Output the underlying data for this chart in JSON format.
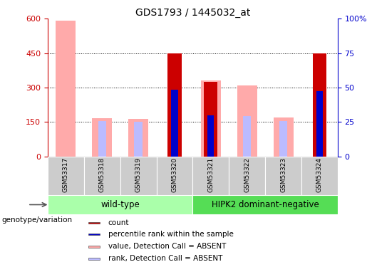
{
  "title": "GDS1793 / 1445032_at",
  "samples": [
    "GSM53317",
    "GSM53318",
    "GSM53319",
    "GSM53320",
    "GSM53321",
    "GSM53322",
    "GSM53323",
    "GSM53324"
  ],
  "groups": {
    "wild-type": [
      0,
      1,
      2,
      3
    ],
    "HIPK2 dominant-negative": [
      4,
      5,
      6,
      7
    ]
  },
  "ylim_left": [
    0,
    600
  ],
  "ylim_right": [
    0,
    100
  ],
  "yticks_left": [
    0,
    150,
    300,
    450,
    600
  ],
  "ytick_labels_left": [
    "0",
    "150",
    "300",
    "450",
    "600"
  ],
  "yticks_right": [
    0,
    25,
    50,
    75,
    100
  ],
  "ytick_labels_right": [
    "0",
    "25",
    "50",
    "75",
    "100%"
  ],
  "value_absent": [
    590,
    165,
    163,
    null,
    330,
    310,
    170,
    null
  ],
  "rank_absent_val": [
    null,
    155,
    152,
    null,
    null,
    175,
    155,
    null
  ],
  "count_present": [
    null,
    null,
    null,
    450,
    325,
    null,
    null,
    450
  ],
  "rank_present_val": [
    null,
    null,
    null,
    290,
    178,
    null,
    null,
    285
  ],
  "color_count": "#cc0000",
  "color_rank": "#0000cc",
  "color_value_absent": "#ffaaaa",
  "color_rank_absent": "#bbbbff",
  "left_tick_color": "#cc0000",
  "right_tick_color": "#0000cc",
  "group_color_wt": "#aaffaa",
  "group_color_hipk2": "#55dd55",
  "sample_bg_color": "#cccccc",
  "legend_items": [
    {
      "label": "count",
      "color": "#cc0000"
    },
    {
      "label": "percentile rank within the sample",
      "color": "#0000cc"
    },
    {
      "label": "value, Detection Call = ABSENT",
      "color": "#ffaaaa"
    },
    {
      "label": "rank, Detection Call = ABSENT",
      "color": "#bbbbff"
    }
  ],
  "wide_bar_width": 0.55,
  "narrow_bar_width": 0.22,
  "count_bar_width": 0.38,
  "rank_bar_width": 0.18
}
